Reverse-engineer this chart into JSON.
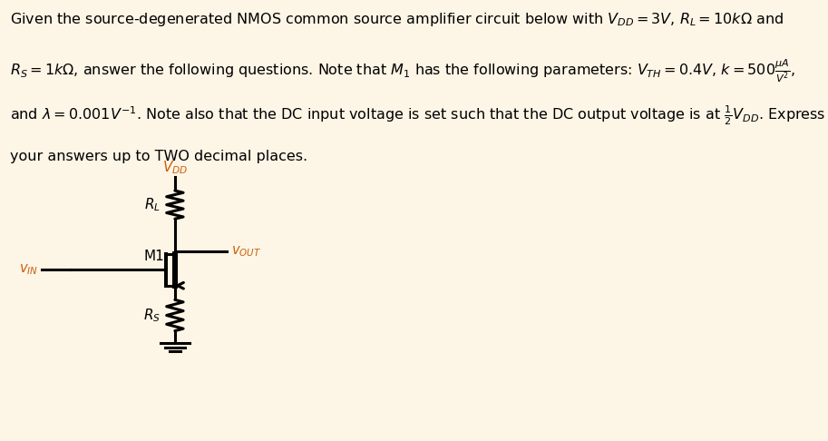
{
  "background_color": "#fdf5e6",
  "circuit_box_color": "#ffffff",
  "text_color": "#000000",
  "orange_color": "#c8600a",
  "figsize": [
    9.13,
    4.86
  ],
  "dpi": 100,
  "line1": "Given the source-degenerated NMOS common source amplifier circuit below with $V_{DD} = 3V$, $R_L = 10k\\Omega$ and",
  "line2": "$R_S = 1k\\Omega$, answer the following questions. Note that $M_1$ has the following parameters: $V_{TH} = 0.4V$, $k = 500\\frac{\\mu A}{V^2}$,",
  "line3": "and $\\lambda = 0.001V^{-1}$. Note also that the DC input voltage is set such that the DC output voltage is at $\\frac{1}{2}V_{DD}$. Express all",
  "line4": "your answers up to TWO decimal places.",
  "vdd_label": "$V_{DD}$",
  "rl_label": "$R_L$",
  "m1_label": "M1",
  "vout_label": "$v_{OUT}$",
  "vin_label": "$v_{IN}$",
  "rs_label": "$R_S$",
  "text_fontsize": 11.5,
  "label_fontsize": 11.0,
  "small_label_fontsize": 10.5
}
